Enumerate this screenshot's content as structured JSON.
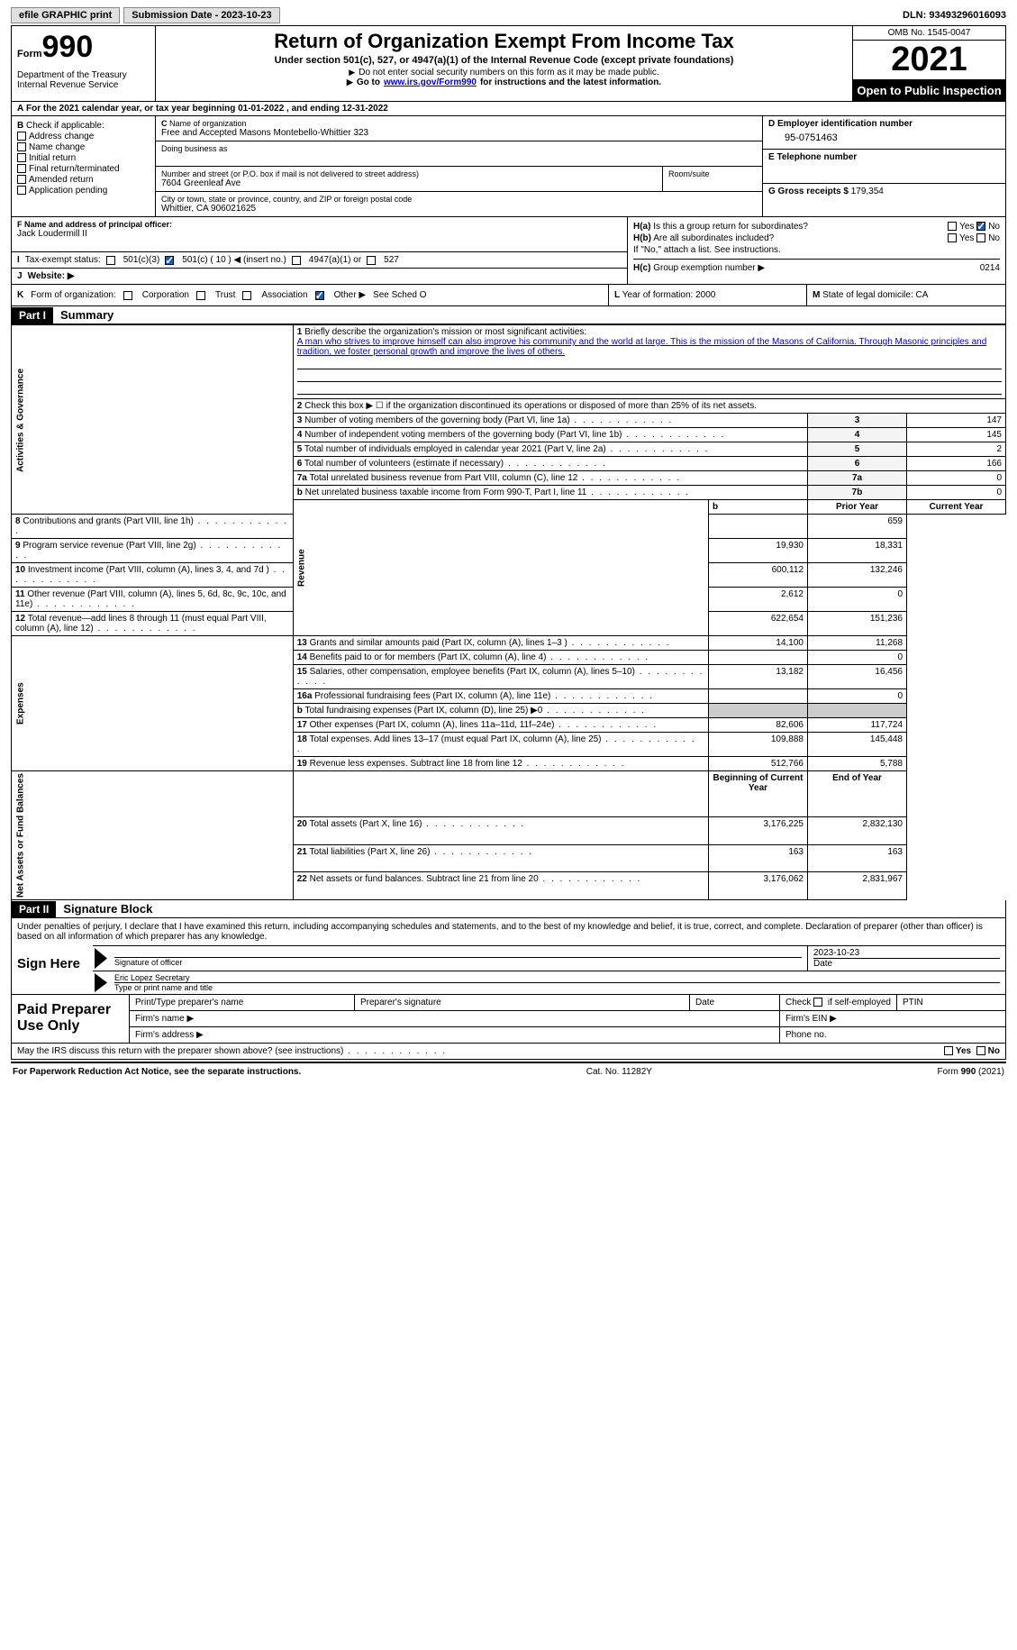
{
  "topbar": {
    "efile": "efile GRAPHIC print",
    "submission": "Submission Date - 2023-10-23",
    "dln_label": "DLN:",
    "dln": "93493296016093"
  },
  "header": {
    "form_small": "Form",
    "form_big": "990",
    "dept": "Department of the Treasury",
    "irs": "Internal Revenue Service",
    "title": "Return of Organization Exempt From Income Tax",
    "sub": "Under section 501(c), 527, or 4947(a)(1) of the Internal Revenue Code (except private foundations)",
    "sub2": "Do not enter social security numbers on this form as it may be made public.",
    "sub3a": "Go to",
    "sub3b": "www.irs.gov/Form990",
    "sub3c": "for instructions and the latest information.",
    "omb": "OMB No. 1545-0047",
    "year": "2021",
    "inspect": "Open to Public Inspection"
  },
  "A": {
    "text": "For the 2021 calendar year, or tax year beginning 01-01-2022   , and ending 12-31-2022"
  },
  "B": {
    "label": "Check if applicable:",
    "items": [
      "Address change",
      "Name change",
      "Initial return",
      "Final return/terminated",
      "Amended return",
      "Application pending"
    ]
  },
  "C": {
    "name_lbl": "Name of organization",
    "name": "Free and Accepted Masons Montebello-Whittier 323",
    "dba_lbl": "Doing business as",
    "street_lbl": "Number and street (or P.O. box if mail is not delivered to street address)",
    "room_lbl": "Room/suite",
    "street": "7604 Greenleaf Ave",
    "city_lbl": "City or town, state or province, country, and ZIP or foreign postal code",
    "city": "Whittier, CA  906021625"
  },
  "D": {
    "lbl": "D Employer identification number",
    "val": "95-0751463"
  },
  "E": {
    "lbl": "E Telephone number"
  },
  "G": {
    "lbl": "G Gross receipts $",
    "val": "179,354"
  },
  "F": {
    "lbl": "F  Name and address of principal officer:",
    "val": "Jack Loudermill II"
  },
  "H": {
    "a": "Is this a group return for subordinates?",
    "b": "Are all subordinates included?",
    "note": "If \"No,\" attach a list. See instructions.",
    "c_lbl": "Group exemption number ▶",
    "c_val": "0214",
    "yes": "Yes",
    "no": "No",
    "ha": "H(a)",
    "hb": "H(b)",
    "hc": "H(c)"
  },
  "I": {
    "lbl": "Tax-exempt status:",
    "o1": "501(c)(3)",
    "o2": "501(c) ( 10 ) ◀ (insert no.)",
    "o3": "4947(a)(1) or",
    "o4": "527"
  },
  "J": {
    "lbl": "Website: ▶"
  },
  "K": {
    "lbl": "Form of organization:",
    "o1": "Corporation",
    "o2": "Trust",
    "o3": "Association",
    "o4": "Other ▶",
    "note": "See Sched O"
  },
  "L": {
    "lbl": "Year of formation:",
    "val": "2000"
  },
  "M": {
    "lbl": "State of legal domicile:",
    "val": "CA"
  },
  "part1": {
    "hdr": "Part I",
    "title": "Summary"
  },
  "summary": {
    "line1_lbl": "Briefly describe the organization's mission or most significant activities:",
    "line1_txt": "A man who strives to improve himself can also improve his community and the world at large. This is the mission of the Masons of California. Through Masonic principles and tradition, we foster personal growth and improve the lives of others.",
    "line2": "Check this box ▶ ☐ if the organization discontinued its operations or disposed of more than 25% of its net assets.",
    "rows_ag": [
      {
        "n": "3",
        "t": "Number of voting members of the governing body (Part VI, line 1a)",
        "b": "3",
        "v": "147"
      },
      {
        "n": "4",
        "t": "Number of independent voting members of the governing body (Part VI, line 1b)",
        "b": "4",
        "v": "145"
      },
      {
        "n": "5",
        "t": "Total number of individuals employed in calendar year 2021 (Part V, line 2a)",
        "b": "5",
        "v": "2"
      },
      {
        "n": "6",
        "t": "Total number of volunteers (estimate if necessary)",
        "b": "6",
        "v": "166"
      },
      {
        "n": "7a",
        "t": "Total unrelated business revenue from Part VIII, column (C), line 12",
        "b": "7a",
        "v": "0"
      },
      {
        "n": "b",
        "t": "Net unrelated business taxable income from Form 990-T, Part I, line 11",
        "b": "7b",
        "v": "0"
      }
    ],
    "col_prior": "Prior Year",
    "col_curr": "Current Year",
    "rows_rev": [
      {
        "n": "8",
        "t": "Contributions and grants (Part VIII, line 1h)",
        "p": "",
        "c": "659"
      },
      {
        "n": "9",
        "t": "Program service revenue (Part VIII, line 2g)",
        "p": "19,930",
        "c": "18,331"
      },
      {
        "n": "10",
        "t": "Investment income (Part VIII, column (A), lines 3, 4, and 7d )",
        "p": "600,112",
        "c": "132,246"
      },
      {
        "n": "11",
        "t": "Other revenue (Part VIII, column (A), lines 5, 6d, 8c, 9c, 10c, and 11e)",
        "p": "2,612",
        "c": "0"
      },
      {
        "n": "12",
        "t": "Total revenue—add lines 8 through 11 (must equal Part VIII, column (A), line 12)",
        "p": "622,654",
        "c": "151,236"
      }
    ],
    "rows_exp": [
      {
        "n": "13",
        "t": "Grants and similar amounts paid (Part IX, column (A), lines 1–3 )",
        "p": "14,100",
        "c": "11,268"
      },
      {
        "n": "14",
        "t": "Benefits paid to or for members (Part IX, column (A), line 4)",
        "p": "",
        "c": "0"
      },
      {
        "n": "15",
        "t": "Salaries, other compensation, employee benefits (Part IX, column (A), lines 5–10)",
        "p": "13,182",
        "c": "16,456"
      },
      {
        "n": "16a",
        "t": "Professional fundraising fees (Part IX, column (A), line 11e)",
        "p": "",
        "c": "0"
      },
      {
        "n": "b",
        "t": "Total fundraising expenses (Part IX, column (D), line 25) ▶0",
        "p": "SHADE",
        "c": "SHADE"
      },
      {
        "n": "17",
        "t": "Other expenses (Part IX, column (A), lines 11a–11d, 11f–24e)",
        "p": "82,606",
        "c": "117,724"
      },
      {
        "n": "18",
        "t": "Total expenses. Add lines 13–17 (must equal Part IX, column (A), line 25)",
        "p": "109,888",
        "c": "145,448"
      },
      {
        "n": "19",
        "t": "Revenue less expenses. Subtract line 18 from line 12",
        "p": "512,766",
        "c": "5,788"
      }
    ],
    "col_begin": "Beginning of Current Year",
    "col_end": "End of Year",
    "rows_net": [
      {
        "n": "20",
        "t": "Total assets (Part X, line 16)",
        "p": "3,176,225",
        "c": "2,832,130"
      },
      {
        "n": "21",
        "t": "Total liabilities (Part X, line 26)",
        "p": "163",
        "c": "163"
      },
      {
        "n": "22",
        "t": "Net assets or fund balances. Subtract line 21 from line 20",
        "p": "3,176,062",
        "c": "2,831,967"
      }
    ],
    "vlab_ag": "Activities & Governance",
    "vlab_rev": "Revenue",
    "vlab_exp": "Expenses",
    "vlab_net": "Net Assets or Fund Balances"
  },
  "part2": {
    "hdr": "Part II",
    "title": "Signature Block"
  },
  "sig": {
    "decl": "Under penalties of perjury, I declare that I have examined this return, including accompanying schedules and statements, and to the best of my knowledge and belief, it is true, correct, and complete. Declaration of preparer (other than officer) is based on all information of which preparer has any knowledge.",
    "here": "Sign Here",
    "l1": "Signature of officer",
    "l1d": "Date",
    "l1dv": "2023-10-23",
    "l2v": "Eric Lopez  Secretary",
    "l2": "Type or print name and title"
  },
  "prep": {
    "title": "Paid Preparer Use Only",
    "c1": "Print/Type preparer's name",
    "c2": "Preparer's signature",
    "c3": "Date",
    "c4a": "Check",
    "c4b": "if self-employed",
    "c5": "PTIN",
    "r2a": "Firm's name  ▶",
    "r2b": "Firm's EIN ▶",
    "r3a": "Firm's address ▶",
    "r3b": "Phone no."
  },
  "discuss": {
    "t": "May the IRS discuss this return with the preparer shown above? (see instructions)",
    "yes": "Yes",
    "no": "No"
  },
  "footer": {
    "l": "For Paperwork Reduction Act Notice, see the separate instructions.",
    "m": "Cat. No. 11282Y",
    "r": "Form 990 (2021)"
  }
}
